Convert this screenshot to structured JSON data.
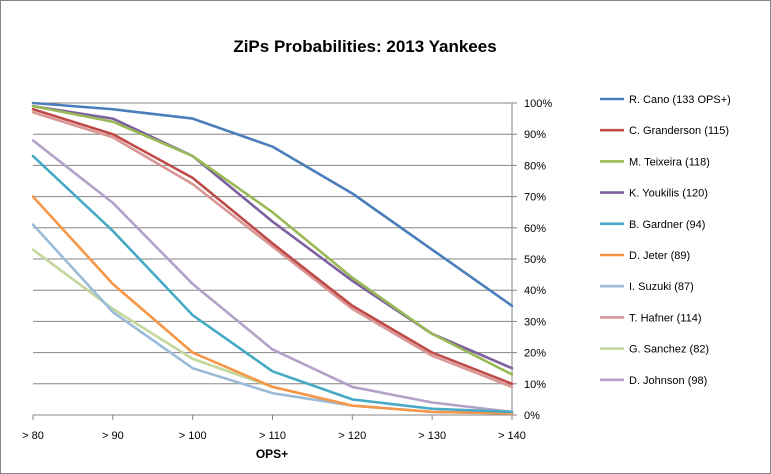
{
  "chart_data": {
    "type": "line",
    "title": "ZiPs Probabilities:  2013 Yankees",
    "xlabel": "OPS+",
    "ylabel": "",
    "categories": [
      "> 80",
      "> 90",
      "> 100",
      "> 110",
      "> 120",
      "> 130",
      "> 140"
    ],
    "ylim": [
      0,
      100
    ],
    "yticks": [
      "0%",
      "10%",
      "20%",
      "30%",
      "40%",
      "50%",
      "60%",
      "70%",
      "80%",
      "90%",
      "100%"
    ],
    "grid": "horizontal",
    "legend_position": "right",
    "series": [
      {
        "name": "R. Cano (133 OPS+)",
        "color": "#4a7ebb",
        "values": [
          100,
          98,
          95,
          86,
          71,
          53,
          35
        ]
      },
      {
        "name": "C. Granderson (115)",
        "color": "#be4b48",
        "values": [
          98,
          90,
          76,
          55,
          35,
          20,
          10
        ]
      },
      {
        "name": "M. Teixeira (118)",
        "color": "#98b954",
        "values": [
          99,
          94,
          83,
          65,
          44,
          26,
          13
        ]
      },
      {
        "name": "K. Youkilis (120)",
        "color": "#7d60a0",
        "values": [
          99,
          95,
          83,
          62,
          43,
          26,
          15
        ]
      },
      {
        "name": "B. Gardner (94)",
        "color": "#46aac5",
        "values": [
          83,
          59,
          32,
          14,
          5,
          2,
          1
        ]
      },
      {
        "name": "D. Jeter (89)",
        "color": "#f69646",
        "values": [
          70,
          42,
          20,
          9,
          3,
          1,
          0.5
        ]
      },
      {
        "name": "I. Suzuki (87)",
        "color": "#9bbbd9",
        "values": [
          61,
          33,
          15,
          7,
          3,
          1,
          0.5
        ]
      },
      {
        "name": "T. Hafner (114)",
        "color": "#d99694",
        "values": [
          97,
          89,
          74,
          54,
          34,
          19,
          9
        ]
      },
      {
        "name": "G. Sanchez (82)",
        "color": "#c3d69b",
        "values": [
          53,
          34,
          18,
          9,
          3,
          1,
          0.5
        ]
      },
      {
        "name": "D. Johnson (98)",
        "color": "#b3a2c7",
        "values": [
          88,
          68,
          42,
          21,
          9,
          4,
          1
        ]
      }
    ]
  }
}
